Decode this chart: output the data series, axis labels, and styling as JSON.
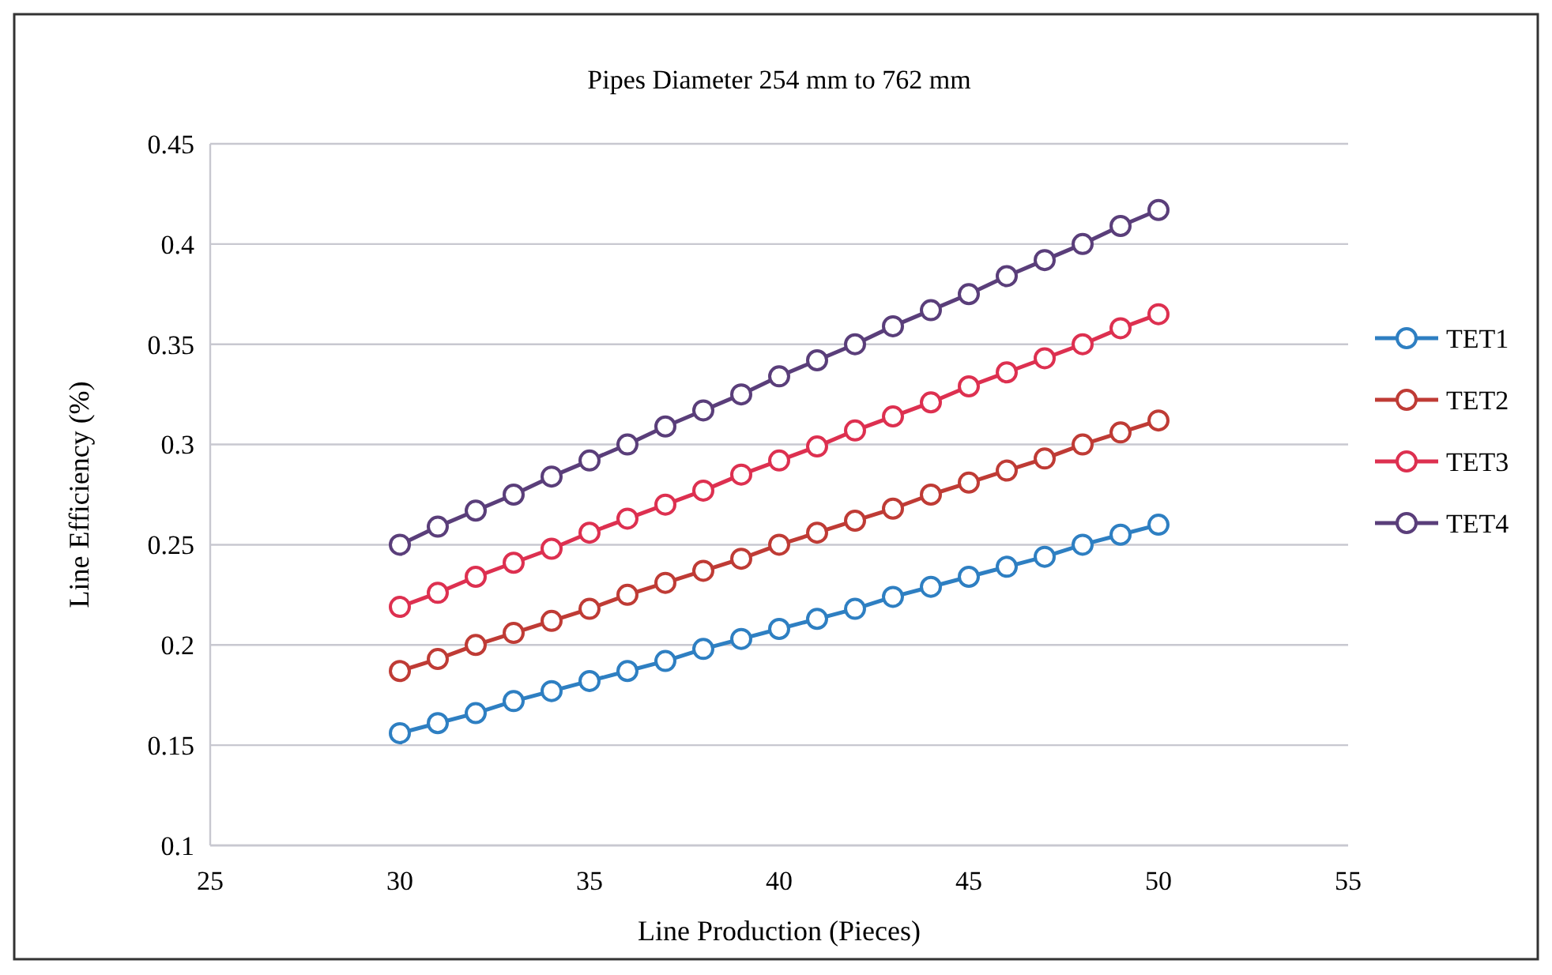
{
  "chart_data": {
    "type": "line",
    "title": "Pipes Diameter 254 mm to 762 mm",
    "xlabel": "Line Production (Pieces)",
    "ylabel": "Line Efficiency (%)",
    "x": [
      30,
      31,
      32,
      33,
      34,
      35,
      36,
      37,
      38,
      39,
      40,
      41,
      42,
      43,
      44,
      45,
      46,
      47,
      48,
      49,
      50
    ],
    "series": [
      {
        "name": "TET1",
        "color": "#2e7fc2",
        "values": [
          0.156,
          0.161,
          0.166,
          0.172,
          0.177,
          0.182,
          0.187,
          0.192,
          0.198,
          0.203,
          0.208,
          0.213,
          0.218,
          0.224,
          0.229,
          0.234,
          0.239,
          0.244,
          0.25,
          0.255,
          0.26
        ]
      },
      {
        "name": "TET2",
        "color": "#bf3b35",
        "values": [
          0.187,
          0.193,
          0.2,
          0.206,
          0.212,
          0.218,
          0.225,
          0.231,
          0.237,
          0.243,
          0.25,
          0.256,
          0.262,
          0.268,
          0.275,
          0.281,
          0.287,
          0.293,
          0.3,
          0.306,
          0.312
        ]
      },
      {
        "name": "TET3",
        "color": "#dd3050",
        "values": [
          0.219,
          0.226,
          0.234,
          0.241,
          0.248,
          0.256,
          0.263,
          0.27,
          0.277,
          0.285,
          0.292,
          0.299,
          0.307,
          0.314,
          0.321,
          0.329,
          0.336,
          0.343,
          0.35,
          0.358,
          0.365
        ]
      },
      {
        "name": "TET4",
        "color": "#5a3e7a",
        "values": [
          0.25,
          0.259,
          0.267,
          0.275,
          0.284,
          0.292,
          0.3,
          0.309,
          0.317,
          0.325,
          0.334,
          0.342,
          0.35,
          0.359,
          0.367,
          0.375,
          0.384,
          0.392,
          0.4,
          0.409,
          0.417
        ]
      }
    ],
    "xlim": [
      25,
      55
    ],
    "xticks": [
      25,
      30,
      35,
      40,
      45,
      50,
      55
    ],
    "ylim": [
      0.1,
      0.45
    ],
    "yticks": [
      0.1,
      0.15,
      0.2,
      0.25,
      0.3,
      0.35,
      0.4,
      0.45
    ],
    "grid": "y",
    "legend": "right",
    "marker": "circle",
    "line_style": "solid"
  }
}
